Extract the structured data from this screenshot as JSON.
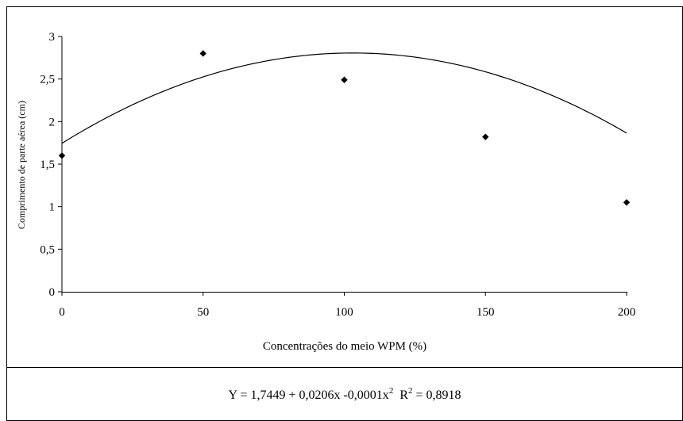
{
  "chart_data": {
    "type": "scatter",
    "title": "",
    "xlabel": "Concentrações do meio WPM (%)",
    "ylabel": "Comprimento de parte aérea (cm)",
    "xlim": [
      0,
      200
    ],
    "ylim": [
      0,
      3
    ],
    "x_ticks": [
      0,
      50,
      100,
      150,
      200
    ],
    "x_tick_labels": [
      "0",
      "50",
      "100",
      "150",
      "200"
    ],
    "y_ticks": [
      0,
      0.5,
      1,
      1.5,
      2,
      2.5,
      3
    ],
    "y_tick_labels": [
      "0",
      "0,5",
      "1",
      "1,5",
      "2",
      "2,5",
      "3"
    ],
    "grid": false,
    "legend": "none",
    "series": [
      {
        "marker": "diamond",
        "x": [
          0,
          50,
          100,
          150,
          200
        ],
        "y": [
          1.6,
          2.8,
          2.49,
          1.82,
          1.05
        ]
      }
    ],
    "trendline": {
      "kind": "polynomial",
      "coefficients": [
        1.7449,
        0.0206,
        -0.0001
      ],
      "x_range": [
        0,
        200
      ]
    },
    "equation": {
      "prefix": "Y = 1,7449 + 0,0206x -0,0001x",
      "sup1": "2",
      "middle": "  R",
      "sup2": "2",
      "suffix": " = 0,8918"
    }
  }
}
